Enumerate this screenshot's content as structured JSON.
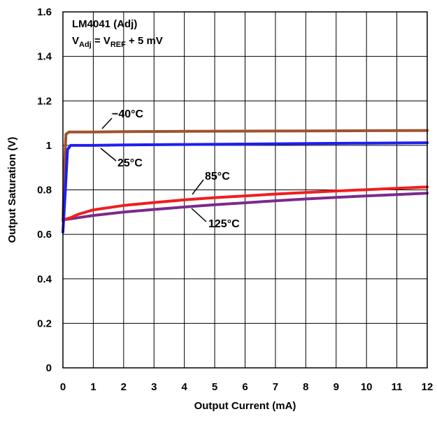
{
  "chart_data": {
    "type": "line",
    "xlabel": "Output Current (mA)",
    "ylabel": "Output Saturation (V)",
    "xlim": [
      0,
      12
    ],
    "ylim": [
      0,
      1.6
    ],
    "x_ticks": [
      "0",
      "1",
      "2",
      "3",
      "4",
      "5",
      "6",
      "7",
      "8",
      "9",
      "10",
      "11",
      "12"
    ],
    "y_ticks": [
      "0",
      "0.2",
      "0.4",
      "0.6",
      "0.8",
      "1",
      "1.2",
      "1.4",
      "1.6"
    ],
    "grid": true,
    "annotation": {
      "line1": "LM4041 (Adj)",
      "line2_main": "V",
      "line2_sub1": "Adj",
      "line2_mid": " = V",
      "line2_sub2": "REF",
      "line2_end": " + 5 mV"
    },
    "series": [
      {
        "name": "−40°C",
        "color": "#a0522d",
        "x": [
          0,
          0.05,
          0.1,
          0.2,
          0.5,
          1,
          2,
          4,
          6,
          8,
          10,
          12
        ],
        "y": [
          0.66,
          0.9,
          1.05,
          1.06,
          1.06,
          1.06,
          1.062,
          1.063,
          1.064,
          1.065,
          1.066,
          1.067
        ]
      },
      {
        "name": "25°C",
        "color": "#1e1ef0",
        "x": [
          0,
          0.08,
          0.15,
          0.25,
          0.5,
          1,
          2,
          4,
          6,
          8,
          10,
          12
        ],
        "y": [
          0.61,
          0.8,
          0.98,
          1.0,
          1.0,
          1.0,
          1.002,
          1.004,
          1.006,
          1.008,
          1.01,
          1.012
        ]
      },
      {
        "name": "85°C",
        "color": "#f01e1e",
        "x": [
          0,
          0.25,
          0.5,
          1,
          2,
          3,
          4,
          5,
          6,
          7,
          8,
          9,
          10,
          11,
          12
        ],
        "y": [
          0.665,
          0.675,
          0.69,
          0.71,
          0.73,
          0.743,
          0.755,
          0.765,
          0.773,
          0.781,
          0.788,
          0.795,
          0.801,
          0.807,
          0.813
        ]
      },
      {
        "name": "125°C",
        "color": "#7b2a8c",
        "x": [
          0,
          0.25,
          0.5,
          1,
          2,
          3,
          4,
          5,
          6,
          7,
          8,
          9,
          10,
          11,
          12
        ],
        "y": [
          0.665,
          0.67,
          0.675,
          0.685,
          0.7,
          0.712,
          0.723,
          0.733,
          0.742,
          0.751,
          0.759,
          0.766,
          0.773,
          0.779,
          0.785
        ]
      }
    ]
  }
}
